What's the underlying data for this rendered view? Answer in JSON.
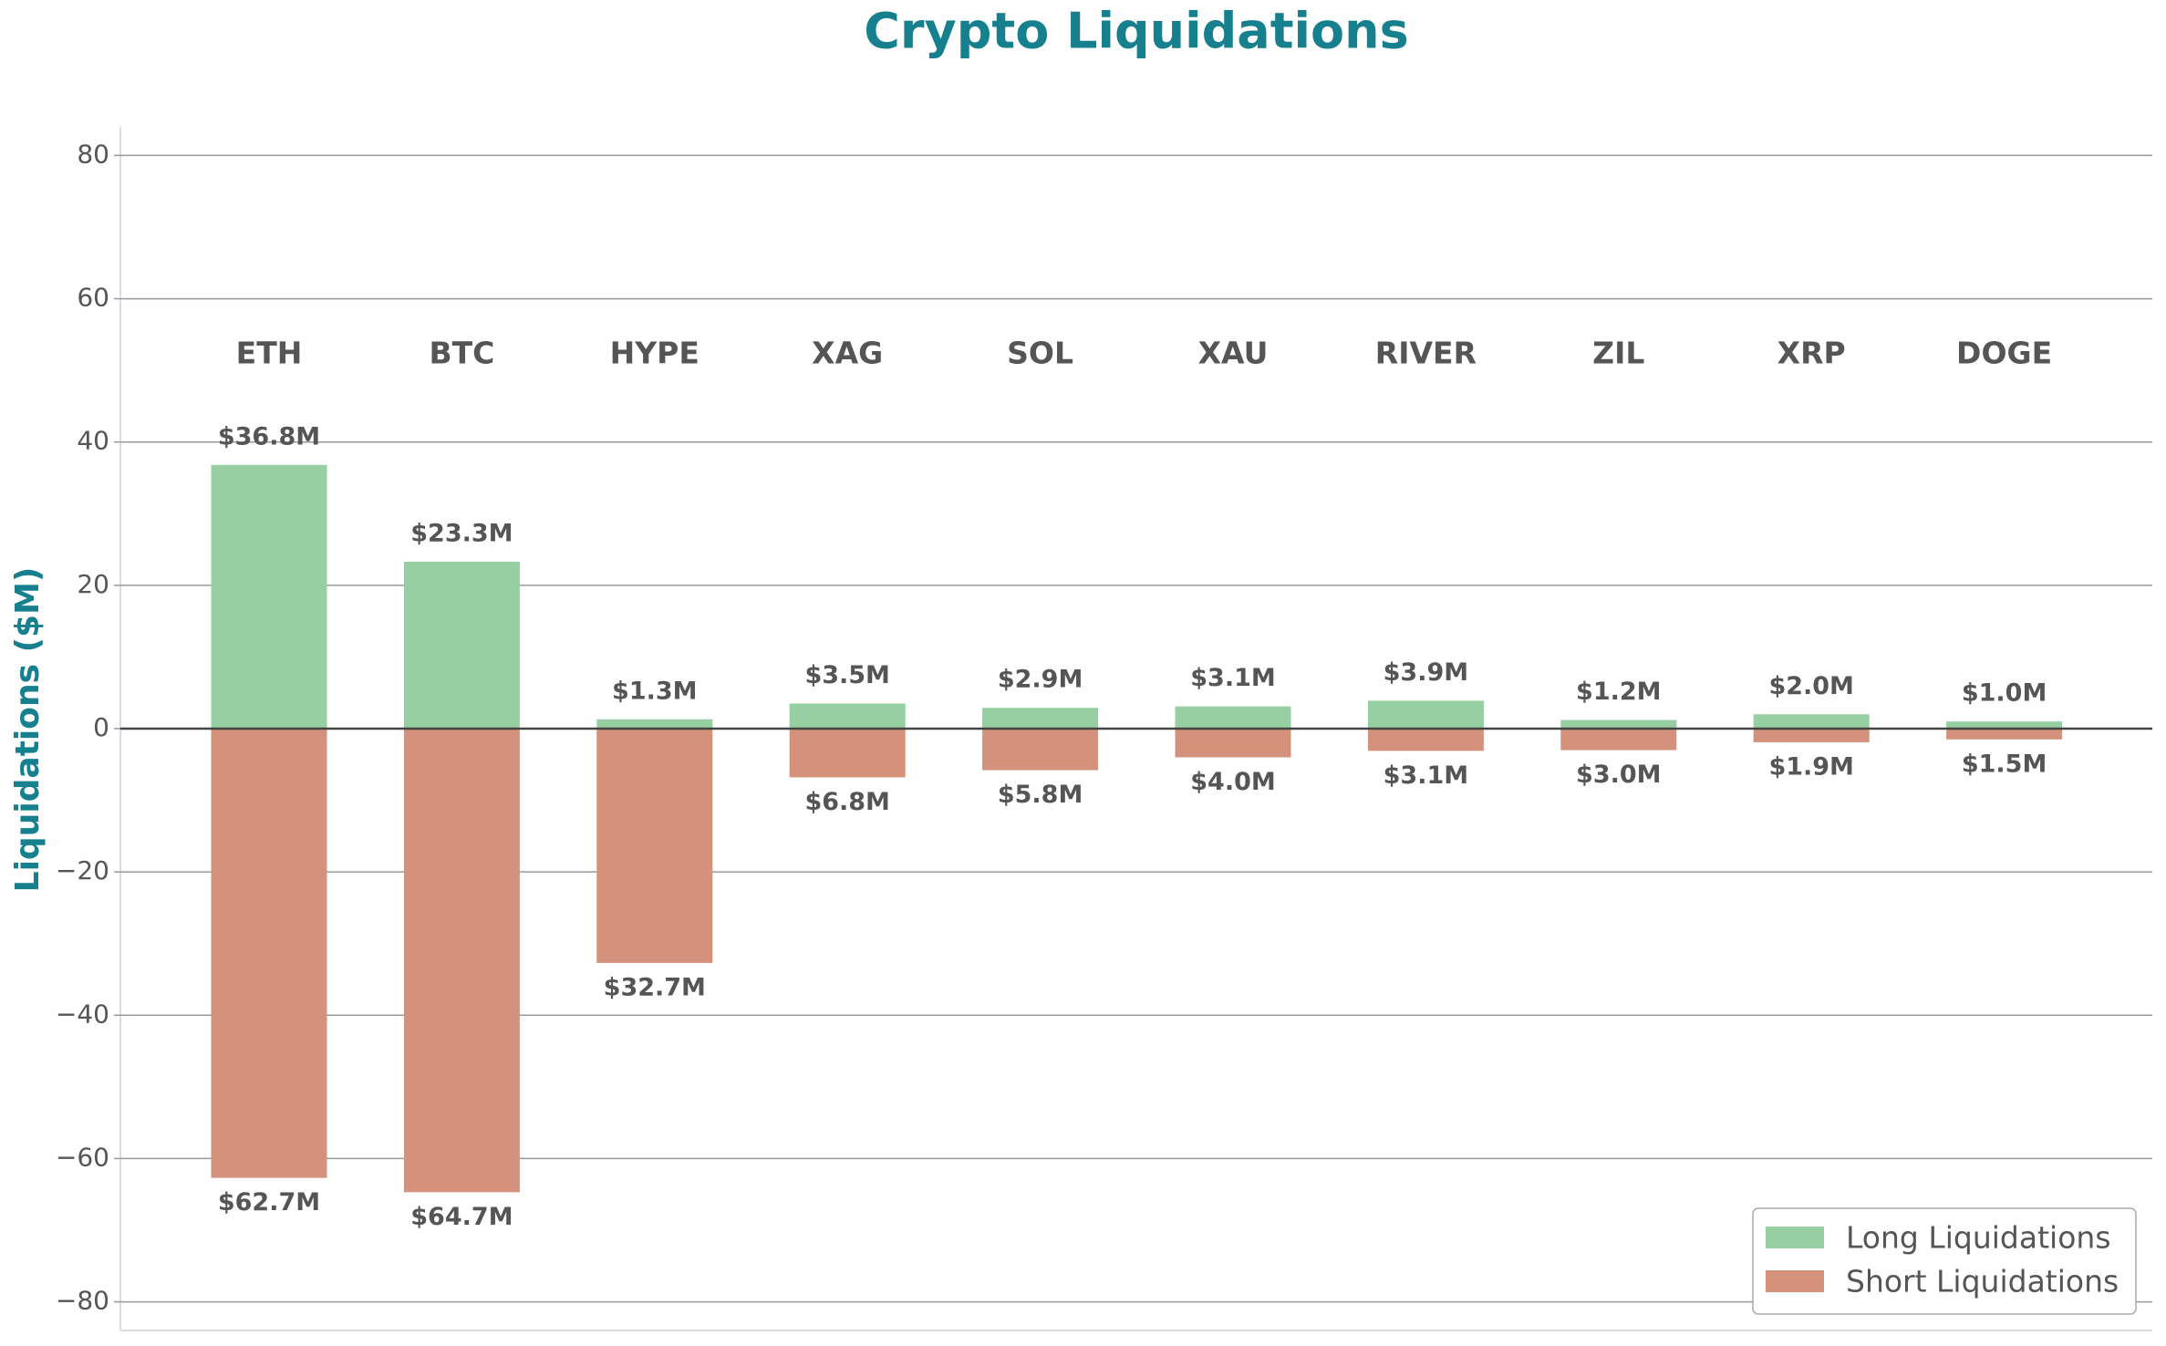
{
  "chart_data": {
    "type": "diverging_bar",
    "title": "Crypto Liquidations",
    "y_label": "Liquidations ($M)",
    "categories": [
      "ETH",
      "BTC",
      "HYPE",
      "XAG",
      "SOL",
      "XAU",
      "RIVER",
      "ZIL",
      "XRP",
      "DOGE"
    ],
    "series": [
      {
        "name": "Long Liquidations",
        "color": "#95cfa2",
        "values": [
          36.8,
          23.3,
          1.3,
          3.5,
          2.9,
          3.1,
          3.9,
          1.2,
          2.0,
          1.0
        ],
        "value_labels": [
          "$36.8M",
          "$23.3M",
          "$1.3M",
          "$3.5M",
          "$2.9M",
          "$3.1M",
          "$3.9M",
          "$1.2M",
          "$2.0M",
          "$1.0M"
        ]
      },
      {
        "name": "Short Liquidations",
        "color": "#d4917b",
        "values": [
          -62.7,
          -64.7,
          -32.7,
          -6.8,
          -5.8,
          -4.0,
          -3.1,
          -3.0,
          -1.9,
          -1.5
        ],
        "value_labels": [
          "$62.7M",
          "$64.7M",
          "$32.7M",
          "$6.8M",
          "$5.8M",
          "$4.0M",
          "$3.1M",
          "$3.0M",
          "$1.9M",
          "$1.5M"
        ]
      }
    ],
    "ylim": [
      -84,
      84
    ],
    "yticks": [
      {
        "value": -80,
        "label": "−80"
      },
      {
        "value": -60,
        "label": "−60"
      },
      {
        "value": -40,
        "label": "−40"
      },
      {
        "value": -20,
        "label": "−20"
      },
      0,
      20,
      40,
      60,
      80
    ],
    "grid": true,
    "legend": "lower right"
  }
}
